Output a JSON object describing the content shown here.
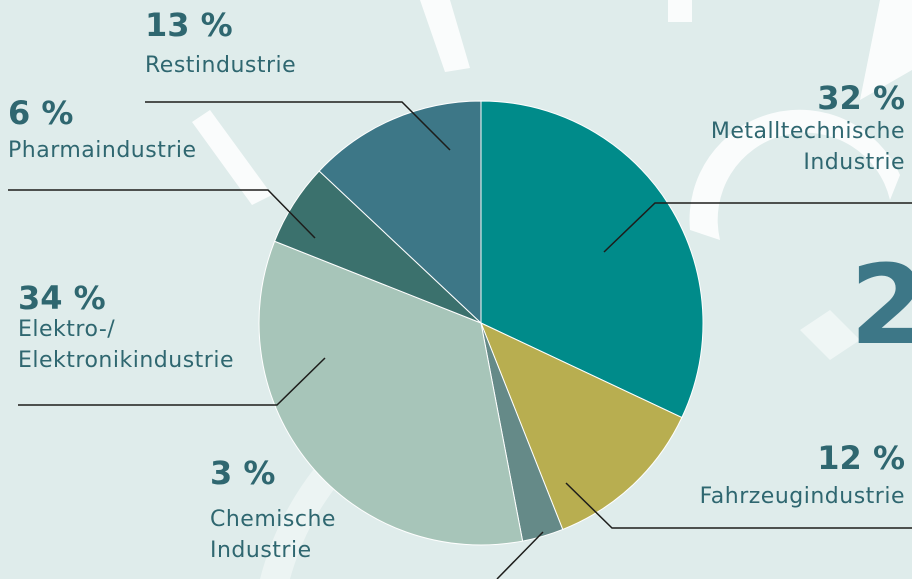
{
  "chart_data": {
    "type": "pie",
    "categories": [
      "Metalltechnische\nIndustrie",
      "Fahrzeugindustrie",
      "Chemische\nIndustrie",
      "Elektro-/\nElektronikindustrie",
      "Pharmaindustrie",
      "Restindustrie"
    ],
    "values": [
      32,
      12,
      3,
      34,
      6,
      13
    ],
    "value_labels": [
      "32 %",
      "12 %",
      "3 %",
      "34 %",
      "6 %",
      "13 %"
    ],
    "colors": [
      "#008b8a",
      "#b8ae50",
      "#658a88",
      "#a7c5b9",
      "#3b716d",
      "#3d7787"
    ],
    "page_number": "2"
  }
}
